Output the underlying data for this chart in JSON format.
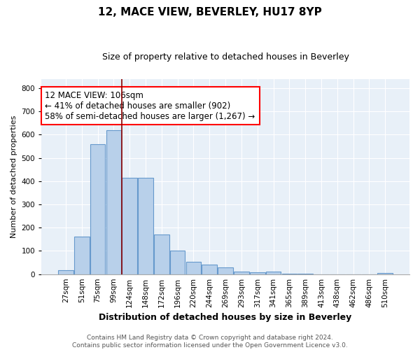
{
  "title": "12, MACE VIEW, BEVERLEY, HU17 8YP",
  "subtitle": "Size of property relative to detached houses in Beverley",
  "xlabel": "Distribution of detached houses by size in Beverley",
  "ylabel": "Number of detached properties",
  "bar_color": "#b8d0ea",
  "bar_edge_color": "#6699cc",
  "background_color": "#e8f0f8",
  "grid_color": "#ffffff",
  "categories": [
    "27sqm",
    "51sqm",
    "75sqm",
    "99sqm",
    "124sqm",
    "148sqm",
    "172sqm",
    "196sqm",
    "220sqm",
    "244sqm",
    "269sqm",
    "293sqm",
    "317sqm",
    "341sqm",
    "365sqm",
    "389sqm",
    "413sqm",
    "438sqm",
    "462sqm",
    "486sqm",
    "510sqm"
  ],
  "values": [
    18,
    163,
    560,
    620,
    415,
    415,
    170,
    100,
    53,
    40,
    30,
    12,
    7,
    10,
    2,
    2,
    0,
    0,
    0,
    0,
    5
  ],
  "ylim": [
    0,
    840
  ],
  "yticks": [
    0,
    100,
    200,
    300,
    400,
    500,
    600,
    700,
    800
  ],
  "red_line_x": 3.5,
  "annotation_text": "12 MACE VIEW: 106sqm\n← 41% of detached houses are smaller (902)\n58% of semi-detached houses are larger (1,267) →",
  "footer": "Contains HM Land Registry data © Crown copyright and database right 2024.\nContains public sector information licensed under the Open Government Licence v3.0.",
  "title_fontsize": 11,
  "subtitle_fontsize": 9,
  "xlabel_fontsize": 9,
  "ylabel_fontsize": 8,
  "tick_fontsize": 7.5,
  "annotation_fontsize": 8.5,
  "footer_fontsize": 6.5
}
